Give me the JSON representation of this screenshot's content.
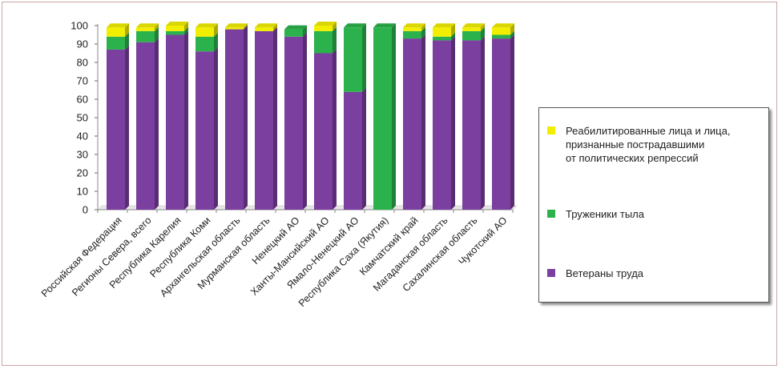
{
  "chart_data": {
    "type": "bar",
    "stacked": true,
    "title": "",
    "xlabel": "",
    "ylabel": "",
    "ylim": [
      0,
      100
    ],
    "yticks": [
      0,
      10,
      20,
      30,
      40,
      50,
      60,
      70,
      80,
      90,
      100
    ],
    "categories": [
      "Российская Федерация",
      "Регионы Севера, всего",
      "Республика Карелия",
      "Республика Коми",
      "Архангельская область",
      "Мурманская область",
      "Ненецкий АО",
      "Ханты-Мансийский АО",
      "Ямало-Ненецкий АО",
      "Республика Саха (Якутия)",
      "Камчатский край",
      "Магаданская область",
      "Сахалинская область",
      "Чукотский АО"
    ],
    "series": [
      {
        "name": "Ветераны труда",
        "color": "#7b3fa0",
        "values": [
          87,
          91,
          95,
          86,
          98,
          97,
          94,
          85,
          64,
          0,
          93,
          92,
          92,
          93
        ]
      },
      {
        "name": "Труженики тыла",
        "color": "#2bb24c",
        "values": [
          7,
          6,
          2,
          8,
          0,
          0,
          4,
          12,
          35,
          99,
          4,
          2,
          5,
          2
        ]
      },
      {
        "name": "Реабилитированные лица и лица,\nпризнанные пострадавшими\nот политических репрессий",
        "color": "#f2ee00",
        "values": [
          5,
          2,
          3,
          5,
          1,
          2,
          0,
          3,
          0,
          0,
          2,
          5,
          2,
          4
        ]
      }
    ],
    "legend_position": "right"
  }
}
